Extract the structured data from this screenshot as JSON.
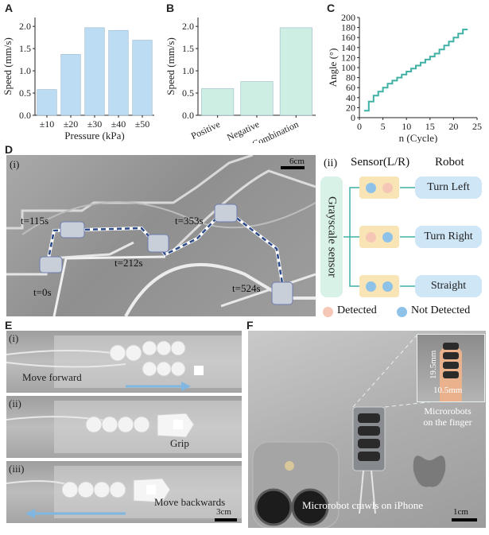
{
  "colors": {
    "bar_a": "#bcdcf3",
    "bar_b": "#cceee3",
    "line_c": "#3fb1a5",
    "detected": "#f6c6b6",
    "not_detected": "#8fc2e8",
    "pill": "#cfe6f7",
    "sensor_box": "#d8f2e7",
    "pair_bg": "#f8e4b4"
  },
  "chart_data": [
    {
      "panel": "A",
      "type": "bar",
      "categories": [
        "±10",
        "±20",
        "±30",
        "±40",
        "±50"
      ],
      "values": [
        0.58,
        1.37,
        1.97,
        1.91,
        1.69
      ],
      "xlabel": "Pressure (kPa)",
      "ylabel": "Speed (mm/s)",
      "ylim": [
        0,
        2.2
      ],
      "yticks": [
        "0.0",
        "0.5",
        "1.0",
        "1.5",
        "2.0"
      ],
      "grid": false
    },
    {
      "panel": "B",
      "type": "bar",
      "categories": [
        "Positive",
        "Negative",
        "Combination"
      ],
      "values": [
        0.6,
        0.76,
        1.97
      ],
      "xlabel": "",
      "ylabel": "Speed (mm/s)",
      "ylim": [
        0,
        2.2
      ],
      "yticks": [
        "0.0",
        "0.5",
        "1.0",
        "1.5",
        "2.0"
      ],
      "grid": false
    },
    {
      "panel": "C",
      "type": "line",
      "x": [
        1,
        2,
        2,
        3,
        3,
        4,
        4,
        5,
        5,
        6,
        6,
        7,
        7,
        8,
        8,
        9,
        9,
        10,
        10,
        11,
        11,
        12,
        12,
        13,
        13,
        14,
        14,
        15,
        15,
        16,
        16,
        17,
        17,
        18,
        18,
        19,
        19,
        20,
        20,
        21,
        21,
        22,
        22,
        23
      ],
      "y": [
        14,
        14,
        32,
        32,
        44,
        44,
        52,
        52,
        60,
        60,
        68,
        68,
        74,
        74,
        80,
        80,
        86,
        86,
        92,
        92,
        98,
        98,
        104,
        104,
        110,
        110,
        116,
        116,
        122,
        122,
        128,
        128,
        136,
        136,
        144,
        144,
        152,
        152,
        160,
        160,
        168,
        168,
        176,
        176
      ],
      "xlabel": "n (Cycle)",
      "ylabel": "Angle (°)",
      "xlim": [
        0,
        25
      ],
      "ylim": [
        0,
        200
      ],
      "xticks": [
        "0",
        "5",
        "10",
        "15",
        "20",
        "25"
      ],
      "yticks": [
        "0",
        "20",
        "40",
        "60",
        "80",
        "100",
        "120",
        "140",
        "160",
        "180",
        "200"
      ],
      "grid": false
    }
  ],
  "panels": {
    "a": "A",
    "b": "B",
    "c": "C",
    "d": "D",
    "e": "E",
    "f": "F"
  },
  "panel_d": {
    "sub_i": "(i)",
    "scale": "6cm",
    "times": [
      "t=0s",
      "t=115s",
      "t=212s",
      "t=353s",
      "t=524s"
    ],
    "sub_ii": "(ii)",
    "sensor_header": "Sensor(L/R)",
    "robot_header": "Robot",
    "sensor_label": "Grayscale sensor",
    "actions": [
      "Turn Left",
      "Turn Right",
      "Straight"
    ],
    "legend_detected": "Detected",
    "legend_not_detected": "Not Detected"
  },
  "panel_e": {
    "subs": [
      "(i)",
      "(ii)",
      "(iii)"
    ],
    "captions": [
      "Move forward",
      "Grip",
      "Move backwards"
    ],
    "scale": "3cm"
  },
  "panel_f": {
    "dim_h": "19.5mm",
    "dim_w": "10.5mm",
    "finger_caption_1": "Microrobots",
    "finger_caption_2": "on the finger",
    "main_caption": "Microrobot crawls on iPhone",
    "scale": "1cm"
  }
}
